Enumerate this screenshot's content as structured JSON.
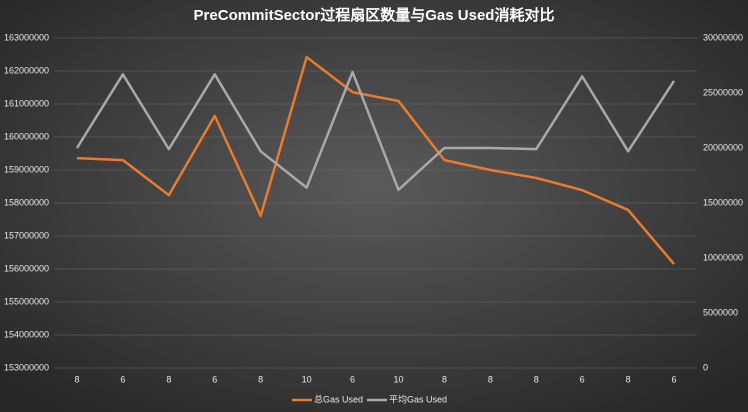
{
  "chart_data": {
    "type": "line",
    "title": "PreCommitSector过程扇区数量与Gas Used消耗对比",
    "categories": [
      "8",
      "6",
      "8",
      "6",
      "8",
      "10",
      "6",
      "10",
      "8",
      "8",
      "8",
      "6",
      "8",
      "6"
    ],
    "series": [
      {
        "name": "总Gas Used",
        "color": "#ea7b2d",
        "values": [
          159360000,
          159300000,
          158240000,
          160640000,
          157610000,
          162420000,
          161360000,
          161090000,
          159300000,
          159000000,
          158760000,
          158390000,
          157790000,
          156150000
        ]
      },
      {
        "name": "平均Gas Used",
        "color": "#a9a9a9",
        "axis": "y2",
        "values": [
          20000000,
          26700000,
          19900000,
          26700000,
          19700000,
          16400000,
          26900000,
          16200000,
          20000000,
          20000000,
          19900000,
          26500000,
          19700000,
          26100000
        ]
      }
    ],
    "ylim": [
      153000000,
      163000000
    ],
    "yticks": [
      153000000,
      154000000,
      155000000,
      156000000,
      157000000,
      158000000,
      159000000,
      160000000,
      161000000,
      162000000,
      163000000
    ],
    "y2lim": [
      0,
      30000000
    ],
    "y2ticks": [
      0,
      5000000,
      10000000,
      15000000,
      20000000,
      25000000,
      30000000
    ],
    "grid": true,
    "legend": "bottom"
  }
}
